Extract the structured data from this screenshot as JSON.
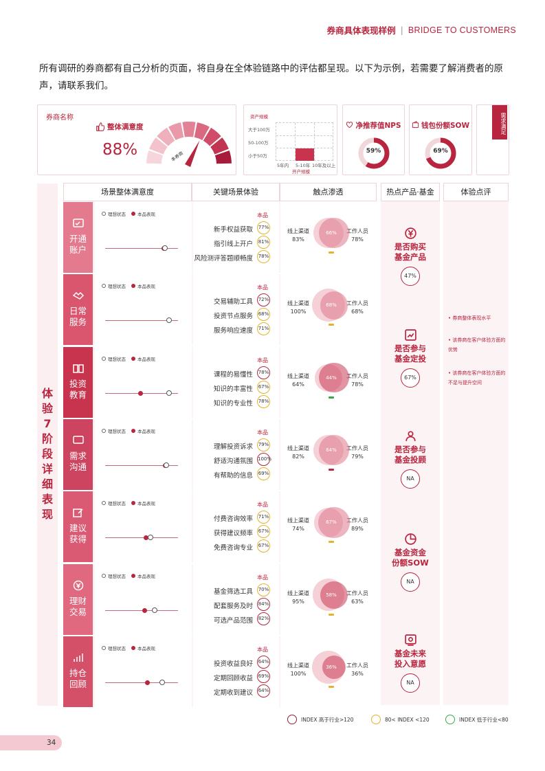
{
  "header": {
    "title_cn": "券商具体表现样例",
    "separator": "|",
    "title_en": "BRIDGE TO CUSTOMERS"
  },
  "intro": "所有调研的券商都有自己分析的页面，将自身在全体验链路中的评估都呈现。以下为示例，若需要了解消费者的原声，请联系我们。",
  "summary": {
    "broker_name_label": "券商名称",
    "satisfaction_label": "整体满意度",
    "satisfaction_value": "88%",
    "satisfaction_fraction": 0.88,
    "gauge_label": "本券商",
    "scale": {
      "title": "资产规模",
      "rows": [
        "大于100万",
        "50-100万",
        "小于50万"
      ],
      "cols": [
        "5年内",
        "5-10年",
        "10年及以上"
      ],
      "caption": "开户规模",
      "highlight": {
        "row": "小于50万",
        "col": "5-10年"
      }
    },
    "nps": {
      "label": "净推荐值NPS",
      "value": "59%",
      "fraction": 0.59
    },
    "sow": {
      "label": "钱包份额SOW",
      "value": "69%",
      "fraction": 0.69
    },
    "tag": "需求满足"
  },
  "vertical_title": "体验7阶段详细表现",
  "columns": [
    "场景整体满意度",
    "关键场景体验",
    "触点渗透",
    "热点产品·基金",
    "体验点评"
  ],
  "legend": {
    "ideal": "理想状态",
    "actual": "本品表现"
  },
  "kpi_header": "本品",
  "touch_labels": {
    "online": "线上渠道",
    "staff": "工作人员"
  },
  "stages": [
    {
      "name": "开通账户",
      "icon": "card-check-icon",
      "ideal": 0.82,
      "actual": 0.8,
      "kpis": [
        {
          "label": "新手权益获取",
          "value": "77%",
          "tier": "mid"
        },
        {
          "label": "指引线上开户",
          "value": "81%",
          "tier": "mid"
        },
        {
          "label": "风险测评答题顺畅度",
          "value": "78%",
          "tier": "mid"
        }
      ],
      "online": "83%",
      "staff": "78%",
      "overlap": "66%",
      "bar": "mid"
    },
    {
      "name": "日常服务",
      "icon": "handshake-icon",
      "ideal": 0.88,
      "actual": null,
      "kpis": [
        {
          "label": "交易辅助工具",
          "value": "72%",
          "tier": "high"
        },
        {
          "label": "投资节点服务",
          "value": "68%",
          "tier": "mid"
        },
        {
          "label": "服务响应速度",
          "value": "71%",
          "tier": "mid"
        }
      ],
      "online": "100%",
      "staff": "68%",
      "overlap": "68%",
      "bar": "mid"
    },
    {
      "name": "投资教育",
      "icon": "book-icon",
      "ideal": 0.88,
      "actual": 0.48,
      "kpis": [
        {
          "label": "课程的易懂性",
          "value": "78%",
          "tier": "high"
        },
        {
          "label": "知识的丰富性",
          "value": "67%",
          "tier": "mid"
        },
        {
          "label": "知识的专业性",
          "value": "78%",
          "tier": "mid"
        }
      ],
      "online": "64%",
      "staff": "78%",
      "overlap": "44%",
      "bar": "low"
    },
    {
      "name": "需求沟通",
      "icon": "chat-icon",
      "ideal": 0.84,
      "actual": 0.82,
      "kpis": [
        {
          "label": "理解投资诉求",
          "value": "79%",
          "tier": "mid"
        },
        {
          "label": "舒适沟通氛围",
          "value": "100%",
          "tier": "high"
        },
        {
          "label": "有帮助的信息",
          "value": "69%",
          "tier": "mid"
        }
      ],
      "online": "82%",
      "staff": "79%",
      "overlap": "64%",
      "bar": "high"
    },
    {
      "name": "建议获得",
      "icon": "edit-icon",
      "ideal": 0.62,
      "actual": 0.56,
      "kpis": [
        {
          "label": "付费咨询效率",
          "value": "71%",
          "tier": "mid"
        },
        {
          "label": "获得建议频率",
          "value": "67%",
          "tier": "mid"
        },
        {
          "label": "免费咨询专业",
          "value": "67%",
          "tier": "mid"
        }
      ],
      "online": "74%",
      "staff": "89%",
      "overlap": "67%",
      "bar": "mid"
    },
    {
      "name": "理财交易",
      "icon": "yuan-cycle-icon",
      "ideal": 0.68,
      "actual": 0.54,
      "kpis": [
        {
          "label": "基金筛选工具",
          "value": "70%",
          "tier": "mid"
        },
        {
          "label": "配套服务及时",
          "value": "84%",
          "tier": "high"
        },
        {
          "label": "可选产品范围",
          "value": "82%",
          "tier": "high"
        }
      ],
      "online": "95%",
      "staff": "63%",
      "overlap": "58%",
      "bar": "mid"
    },
    {
      "name": "持仓回顾",
      "icon": "bar-growth-icon",
      "ideal": 0.78,
      "actual": 0.58,
      "kpis": [
        {
          "label": "投资收益良好",
          "value": "64%",
          "tier": "high"
        },
        {
          "label": "定期回顾收益",
          "value": "69%",
          "tier": "high"
        },
        {
          "label": "定期收到建议",
          "value": "64%",
          "tier": "high"
        }
      ],
      "online": "100%",
      "staff": "36%",
      "overlap": "36%",
      "bar": "mid"
    }
  ],
  "hot_products": [
    {
      "title": "是否购买基金产品",
      "value": "47%",
      "icon": "yuan-circle-icon"
    },
    {
      "title": "是否参与基金定投",
      "value": "67%",
      "icon": "trend-icon"
    },
    {
      "title": "是否参与基金投顾",
      "value": "NA",
      "icon": "advisor-icon"
    },
    {
      "title": "基金资金份额SOW",
      "value": "NA",
      "icon": "pie-icon"
    },
    {
      "title": "基金未来投入意愿",
      "value": "NA",
      "icon": "safe-icon"
    }
  ],
  "review": [
    "• 券商整体表现水平",
    "• 该券商在客户体验方面的优势",
    "• 该券商在客户体验方面的不足与提升空间"
  ],
  "footer_legend": [
    {
      "label": "INDEX 高于行业>120",
      "color": "#8c1d3b"
    },
    {
      "label": "80< INDEX <120",
      "color": "#e3b32d"
    },
    {
      "label": "INDEX 低于行业<80",
      "color": "#3aa84a"
    }
  ],
  "page_number": "34",
  "colors": {
    "accent": "#b8253e",
    "mid": "#e3b32d",
    "low": "#3aa84a"
  }
}
